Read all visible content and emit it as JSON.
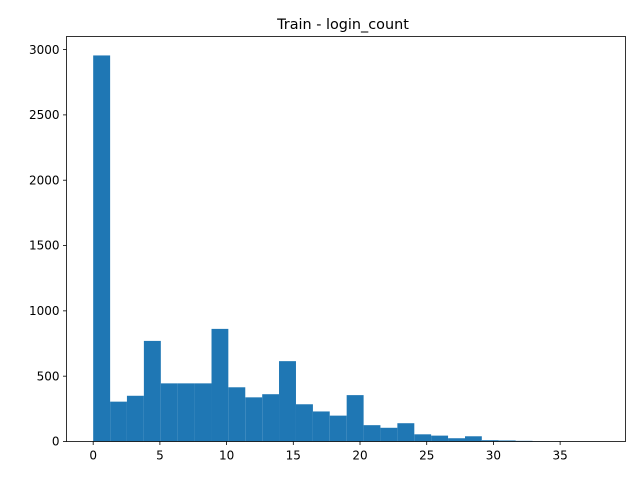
{
  "chart_data": {
    "type": "bar",
    "subtype": "histogram",
    "title": "Train - login_count",
    "xlabel": "",
    "ylabel": "",
    "xlim": [
      -2,
      39.9
    ],
    "ylim": [
      0,
      3100
    ],
    "xticks": [
      0,
      5,
      10,
      15,
      20,
      25,
      30,
      35
    ],
    "yticks": [
      0,
      500,
      1000,
      1500,
      2000,
      2500,
      3000
    ],
    "grid": false,
    "bar_color": "#1f77b4",
    "bins": [
      {
        "x0": 0.0,
        "x1": 1.27,
        "count": 2955
      },
      {
        "x0": 1.27,
        "x1": 2.53,
        "count": 305
      },
      {
        "x0": 2.53,
        "x1": 3.8,
        "count": 350
      },
      {
        "x0": 3.8,
        "x1": 5.07,
        "count": 770
      },
      {
        "x0": 5.07,
        "x1": 6.33,
        "count": 445
      },
      {
        "x0": 6.33,
        "x1": 7.6,
        "count": 445
      },
      {
        "x0": 7.6,
        "x1": 8.87,
        "count": 445
      },
      {
        "x0": 8.87,
        "x1": 10.13,
        "count": 862
      },
      {
        "x0": 10.13,
        "x1": 11.4,
        "count": 415
      },
      {
        "x0": 11.4,
        "x1": 12.67,
        "count": 338
      },
      {
        "x0": 12.67,
        "x1": 13.93,
        "count": 362
      },
      {
        "x0": 13.93,
        "x1": 15.2,
        "count": 615
      },
      {
        "x0": 15.2,
        "x1": 16.47,
        "count": 285
      },
      {
        "x0": 16.47,
        "x1": 17.73,
        "count": 230
      },
      {
        "x0": 17.73,
        "x1": 19.0,
        "count": 198
      },
      {
        "x0": 19.0,
        "x1": 20.27,
        "count": 355
      },
      {
        "x0": 20.27,
        "x1": 21.53,
        "count": 125
      },
      {
        "x0": 21.53,
        "x1": 22.8,
        "count": 105
      },
      {
        "x0": 22.8,
        "x1": 24.07,
        "count": 140
      },
      {
        "x0": 24.07,
        "x1": 25.33,
        "count": 55
      },
      {
        "x0": 25.33,
        "x1": 26.6,
        "count": 45
      },
      {
        "x0": 26.6,
        "x1": 27.87,
        "count": 25
      },
      {
        "x0": 27.87,
        "x1": 29.13,
        "count": 40
      },
      {
        "x0": 29.13,
        "x1": 30.4,
        "count": 10
      },
      {
        "x0": 30.4,
        "x1": 31.67,
        "count": 8
      },
      {
        "x0": 31.67,
        "x1": 32.93,
        "count": 5
      },
      {
        "x0": 32.93,
        "x1": 34.2,
        "count": 2
      },
      {
        "x0": 34.2,
        "x1": 35.47,
        "count": 1
      },
      {
        "x0": 35.47,
        "x1": 36.73,
        "count": 1
      },
      {
        "x0": 36.73,
        "x1": 38.0,
        "count": 1
      }
    ]
  }
}
